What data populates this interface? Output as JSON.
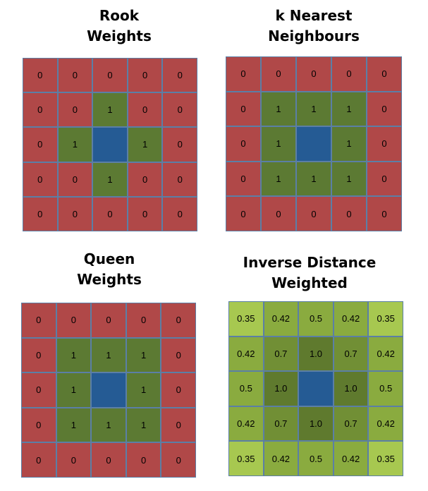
{
  "colors": {
    "red": "#b04848",
    "green": "#5c7a33",
    "blue": "#255b94",
    "idw_light": "#a7c850",
    "idw_mid": "#8aab3f",
    "idw_dark": "#718f35",
    "idw_darkest": "#5f7a2e",
    "border": "#5b7fa6"
  },
  "panels": [
    {
      "id": "rook",
      "title": "Rook\nWeights",
      "center": [
        2,
        2
      ],
      "values": [
        [
          "0",
          "0",
          "0",
          "0",
          "0"
        ],
        [
          "0",
          "0",
          "1",
          "0",
          "0"
        ],
        [
          "0",
          "1",
          "",
          "1",
          "0"
        ],
        [
          "0",
          "0",
          "1",
          "0",
          "0"
        ],
        [
          "0",
          "0",
          "0",
          "0",
          "0"
        ]
      ],
      "palette": "binary"
    },
    {
      "id": "knn",
      "title": "k Nearest\nNeighbours",
      "center": [
        2,
        2
      ],
      "values": [
        [
          "0",
          "0",
          "0",
          "0",
          "0"
        ],
        [
          "0",
          "1",
          "1",
          "1",
          "0"
        ],
        [
          "0",
          "1",
          "",
          "1",
          "0"
        ],
        [
          "0",
          "1",
          "1",
          "1",
          "0"
        ],
        [
          "0",
          "0",
          "0",
          "0",
          "0"
        ]
      ],
      "palette": "binary"
    },
    {
      "id": "queen",
      "title": "Queen\nWeights",
      "center": [
        2,
        2
      ],
      "values": [
        [
          "0",
          "0",
          "0",
          "0",
          "0"
        ],
        [
          "0",
          "1",
          "1",
          "1",
          "0"
        ],
        [
          "0",
          "1",
          "",
          "1",
          "0"
        ],
        [
          "0",
          "1",
          "1",
          "1",
          "0"
        ],
        [
          "0",
          "0",
          "0",
          "0",
          "0"
        ]
      ],
      "palette": "binary"
    },
    {
      "id": "idw",
      "title": "Inverse Distance\nWeighted",
      "center": [
        2,
        2
      ],
      "values": [
        [
          "0.35",
          "0.42",
          "0.5",
          "0.42",
          "0.35"
        ],
        [
          "0.42",
          "0.7",
          "1.0",
          "0.7",
          "0.42"
        ],
        [
          "0.5",
          "1.0",
          "",
          "1.0",
          "0.5"
        ],
        [
          "0.42",
          "0.7",
          "1.0",
          "0.7",
          "0.42"
        ],
        [
          "0.35",
          "0.42",
          "0.5",
          "0.42",
          "0.35"
        ]
      ],
      "palette": "graded"
    }
  ]
}
